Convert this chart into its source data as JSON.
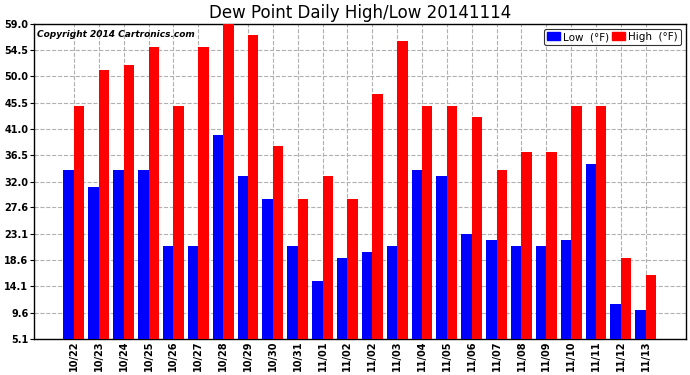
{
  "title": "Dew Point Daily High/Low 20141114",
  "copyright": "Copyright 2014 Cartronics.com",
  "categories": [
    "10/22",
    "10/23",
    "10/24",
    "10/25",
    "10/26",
    "10/27",
    "10/28",
    "10/29",
    "10/30",
    "10/31",
    "11/01",
    "11/02",
    "11/02",
    "11/03",
    "11/04",
    "11/05",
    "11/06",
    "11/07",
    "11/08",
    "11/09",
    "11/10",
    "11/11",
    "11/12",
    "11/13"
  ],
  "low_values": [
    34,
    31,
    34,
    34,
    21,
    21,
    40,
    33,
    29,
    21,
    15,
    19,
    20,
    21,
    34,
    33,
    23,
    22,
    21,
    21,
    22,
    35,
    11,
    10
  ],
  "high_values": [
    45,
    51,
    52,
    55,
    45,
    55,
    59,
    57,
    38,
    29,
    33,
    29,
    47,
    56,
    45,
    45,
    43,
    34,
    37,
    37,
    45,
    45,
    19,
    16
  ],
  "low_color": "#0000ff",
  "high_color": "#ff0000",
  "bg_color": "#ffffff",
  "grid_color": "#b0b0b0",
  "ytick_labels": [
    "5.1",
    "9.6",
    "14.1",
    "18.6",
    "23.1",
    "27.6",
    "32.0",
    "36.5",
    "41.0",
    "45.5",
    "50.0",
    "54.5",
    "59.0"
  ],
  "ytick_values": [
    5.1,
    9.6,
    14.1,
    18.6,
    23.1,
    27.6,
    32.0,
    36.5,
    41.0,
    45.5,
    50.0,
    54.5,
    59.0
  ],
  "ymin": 5.1,
  "ymax": 59.0,
  "bar_width": 0.42,
  "title_fontsize": 12,
  "tick_fontsize": 7,
  "legend_fontsize": 7.5,
  "copyright_fontsize": 6.5
}
